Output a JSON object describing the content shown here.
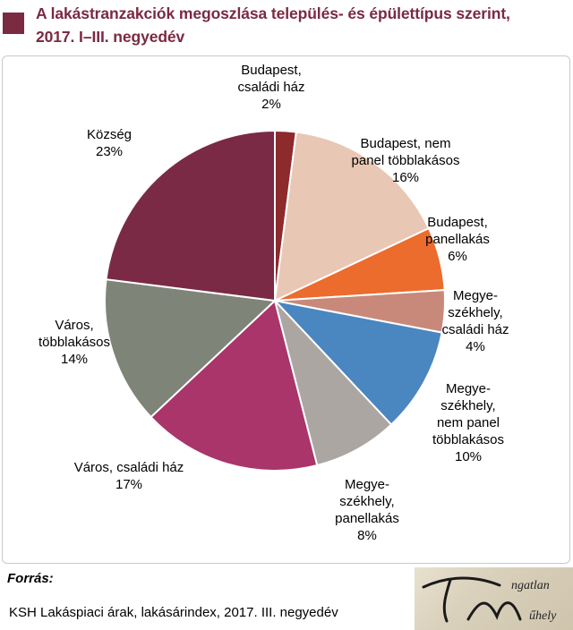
{
  "header": {
    "title_line1": "A lakástranzakciók megoszlása település- és épülettípus szerint,",
    "title_line2": "2017. I–III. negyedév",
    "accent_color": "#7a2a41"
  },
  "chart_data": {
    "type": "pie",
    "start_angle_deg": 0,
    "direction": "clockwise",
    "slices": [
      {
        "label_lines": [
          "Budapest,",
          "családi ház",
          "2%"
        ],
        "value": 2,
        "color": "#8c2a2c"
      },
      {
        "label_lines": [
          "Budapest, nem",
          "panel többlakásos",
          "16%"
        ],
        "value": 16,
        "color": "#e8c7b5"
      },
      {
        "label_lines": [
          "Budapest,",
          "panellakás",
          "6%"
        ],
        "value": 6,
        "color": "#ec6c2d"
      },
      {
        "label_lines": [
          "Megye-",
          "székhely,",
          "családi ház",
          "4%"
        ],
        "value": 4,
        "color": "#c8897a"
      },
      {
        "label_lines": [
          "Megye-",
          "székhely,",
          "nem panel",
          "többlakásos",
          "10%"
        ],
        "value": 10,
        "color": "#4a86c0"
      },
      {
        "label_lines": [
          "Megye-",
          "székhely,",
          "panellakás",
          "8%"
        ],
        "value": 8,
        "color": "#aba6a2"
      },
      {
        "label_lines": [
          "Város, családi ház",
          "17%"
        ],
        "value": 17,
        "color": "#a9356a"
      },
      {
        "label_lines": [
          "Város,",
          "többlakásos",
          "14%"
        ],
        "value": 14,
        "color": "#7f8479"
      },
      {
        "label_lines": [
          "Község",
          "23%"
        ],
        "value": 23,
        "color": "#7a2a45"
      }
    ]
  },
  "footer": {
    "source_label": "Forrás:",
    "source_text": "KSH Lakáspiaci árak, lakásárindex, 2017. III. negyedév",
    "logo_text": "Ingatlan Műhely"
  }
}
